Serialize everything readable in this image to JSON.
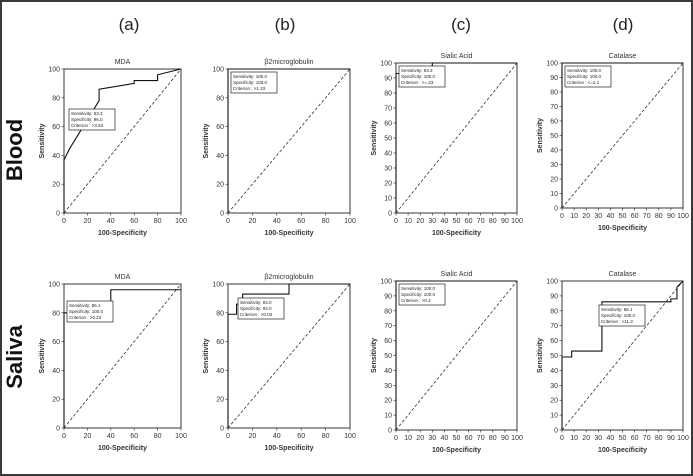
{
  "column_labels": [
    "(a)",
    "(b)",
    "(c)",
    "(d)"
  ],
  "row_labels": [
    "Blood",
    "Saliva"
  ],
  "chart_data": [
    {
      "type": "line",
      "row": "Blood",
      "column": "(a)",
      "title": "MDA",
      "xlabel": "100-Specificity",
      "ylabel": "Sensitivity",
      "xlim": [
        0,
        100
      ],
      "ylim": [
        0,
        100
      ],
      "xticks": [
        "0",
        "20",
        "40",
        "60",
        "80",
        "100"
      ],
      "yticks": [
        "0",
        "20",
        "40",
        "60",
        "80",
        "100"
      ],
      "series": [
        {
          "x": [
            0,
            0,
            5,
            30,
            30,
            60,
            60,
            80,
            80,
            100
          ],
          "y": [
            0,
            37,
            45,
            78,
            86,
            90,
            92,
            92,
            96,
            100
          ]
        }
      ],
      "reference_line": {
        "x": [
          0,
          100
        ],
        "y": [
          0,
          100
        ]
      },
      "stats": [
        "Sensitivity: 53.3",
        "Specificity: 96.0",
        "Criterion : >3.53"
      ]
    },
    {
      "type": "line",
      "row": "Blood",
      "column": "(b)",
      "title": "β2microglobulin",
      "xlabel": "100-Specificity",
      "ylabel": "Sensitivity",
      "xlim": [
        0,
        100
      ],
      "ylim": [
        0,
        100
      ],
      "xticks": [
        "0",
        "20",
        "40",
        "60",
        "80",
        "100"
      ],
      "yticks": [
        "0",
        "20",
        "40",
        "60",
        "80",
        "100"
      ],
      "series": [
        {
          "x": [
            0,
            0,
            100
          ],
          "y": [
            0,
            100,
            100
          ]
        }
      ],
      "reference_line": {
        "x": [
          0,
          100
        ],
        "y": [
          0,
          100
        ]
      },
      "stats": [
        "Sensitivity: 100.0",
        "Specificity: 100.0",
        "Criterion : >1.33"
      ]
    },
    {
      "type": "line",
      "row": "Blood",
      "column": "(c)",
      "title": "Sialic Acid",
      "xlabel": "100-Specificity",
      "ylabel": "Sensitivity",
      "xlim": [
        0,
        100
      ],
      "ylim": [
        0,
        100
      ],
      "xticks": [
        "0",
        "10",
        "20",
        "30",
        "40",
        "50",
        "60",
        "70",
        "80",
        "90",
        "100"
      ],
      "yticks": [
        "0",
        "10",
        "20",
        "30",
        "40",
        "50",
        "60",
        "70",
        "80",
        "90",
        "100"
      ],
      "series": [
        {
          "x": [
            0,
            0,
            20,
            20,
            30,
            30,
            100
          ],
          "y": [
            0,
            93,
            93,
            96,
            96,
            100,
            100
          ]
        }
      ],
      "reference_line": {
        "x": [
          0,
          100
        ],
        "y": [
          0,
          100
        ]
      },
      "stats": [
        "Sensitivity: 93.3",
        "Specificity: 100.0",
        "Criterion : >=.23"
      ]
    },
    {
      "type": "line",
      "row": "Blood",
      "column": "(d)",
      "title": "Catalase",
      "xlabel": "100-Specificity",
      "ylabel": "Sensitivity",
      "xlim": [
        0,
        100
      ],
      "ylim": [
        0,
        100
      ],
      "xticks": [
        "0",
        "10",
        "20",
        "30",
        "40",
        "50",
        "60",
        "70",
        "80",
        "90",
        "100"
      ],
      "yticks": [
        "0",
        "10",
        "20",
        "30",
        "40",
        "50",
        "60",
        "70",
        "80",
        "90",
        "100"
      ],
      "series": [
        {
          "x": [
            0,
            0,
            100
          ],
          "y": [
            0,
            100,
            100
          ]
        }
      ],
      "reference_line": {
        "x": [
          0,
          100
        ],
        "y": [
          0,
          100
        ]
      },
      "stats": [
        "Sensitivity: 100.0",
        "Specificity: 100.0",
        "Criterion : <=2.1"
      ]
    },
    {
      "type": "line",
      "row": "Saliva",
      "column": "(a)",
      "title": "MDA",
      "xlabel": "100-Specificity",
      "ylabel": "Sensitivity",
      "xlim": [
        0,
        100
      ],
      "ylim": [
        0,
        100
      ],
      "xticks": [
        "0",
        "20",
        "40",
        "60",
        "80",
        "100"
      ],
      "yticks": [
        "0",
        "20",
        "40",
        "60",
        "80",
        "100"
      ],
      "series": [
        {
          "x": [
            0,
            0,
            40,
            40,
            100
          ],
          "y": [
            0,
            80,
            80,
            96,
            96
          ]
        }
      ],
      "reference_line": {
        "x": [
          0,
          100
        ],
        "y": [
          0,
          100
        ]
      },
      "stats": [
        "Sensitivity: 86.1",
        "Specificity: 100.0",
        "Criterion : >0.23"
      ]
    },
    {
      "type": "line",
      "row": "Saliva",
      "column": "(b)",
      "title": "β2microglobulin",
      "xlabel": "100-Specificity",
      "ylabel": "Sensitivity",
      "xlim": [
        0,
        100
      ],
      "ylim": [
        0,
        100
      ],
      "xticks": [
        "0",
        "20",
        "40",
        "60",
        "80",
        "100"
      ],
      "yticks": [
        "0",
        "20",
        "40",
        "60",
        "80",
        "100"
      ],
      "series": [
        {
          "x": [
            0,
            0,
            7,
            7,
            12,
            12,
            50,
            50,
            100
          ],
          "y": [
            0,
            79,
            79,
            86,
            86,
            93,
            93,
            100,
            100
          ]
        }
      ],
      "reference_line": {
        "x": [
          0,
          100
        ],
        "y": [
          0,
          100
        ]
      },
      "stats": [
        "Sensitivity: 93.0",
        "Specificity: 93.0",
        "Criterion : >0.03"
      ]
    },
    {
      "type": "line",
      "row": "Saliva",
      "column": "(c)",
      "title": "Sialic Acid",
      "xlabel": "100-Specificity",
      "ylabel": "Sensitivity",
      "xlim": [
        0,
        100
      ],
      "ylim": [
        0,
        100
      ],
      "xticks": [
        "0",
        "10",
        "20",
        "30",
        "40",
        "50",
        "60",
        "70",
        "80",
        "90",
        "100"
      ],
      "yticks": [
        "0",
        "10",
        "20",
        "30",
        "40",
        "50",
        "60",
        "70",
        "80",
        "90",
        "100"
      ],
      "series": [
        {
          "x": [
            0,
            0,
            100
          ],
          "y": [
            0,
            100,
            100
          ]
        }
      ],
      "reference_line": {
        "x": [
          0,
          100
        ],
        "y": [
          0,
          100
        ]
      },
      "stats": [
        "Sensitivity: 100.0",
        "Specificity: 100.0",
        "Criterion : >0.3"
      ]
    },
    {
      "type": "line",
      "row": "Saliva",
      "column": "(d)",
      "title": "Catalase",
      "xlabel": "100-Specificity",
      "ylabel": "Sensitivity",
      "xlim": [
        0,
        100
      ],
      "ylim": [
        0,
        100
      ],
      "xticks": [
        "0",
        "10",
        "20",
        "30",
        "40",
        "50",
        "60",
        "70",
        "80",
        "90",
        "100"
      ],
      "yticks": [
        "0",
        "10",
        "20",
        "30",
        "40",
        "50",
        "60",
        "70",
        "80",
        "90",
        "100"
      ],
      "series": [
        {
          "x": [
            0,
            0,
            8,
            8,
            33,
            33,
            90,
            90,
            95,
            95,
            100
          ],
          "y": [
            0,
            49,
            49,
            53,
            53,
            86,
            86,
            88,
            88,
            96,
            100
          ]
        }
      ],
      "reference_line": {
        "x": [
          0,
          100
        ],
        "y": [
          0,
          100
        ]
      },
      "stats": [
        "Sensitivity: 86.1",
        "Specificity: 100.0",
        "Criterion : >11.3"
      ]
    }
  ]
}
